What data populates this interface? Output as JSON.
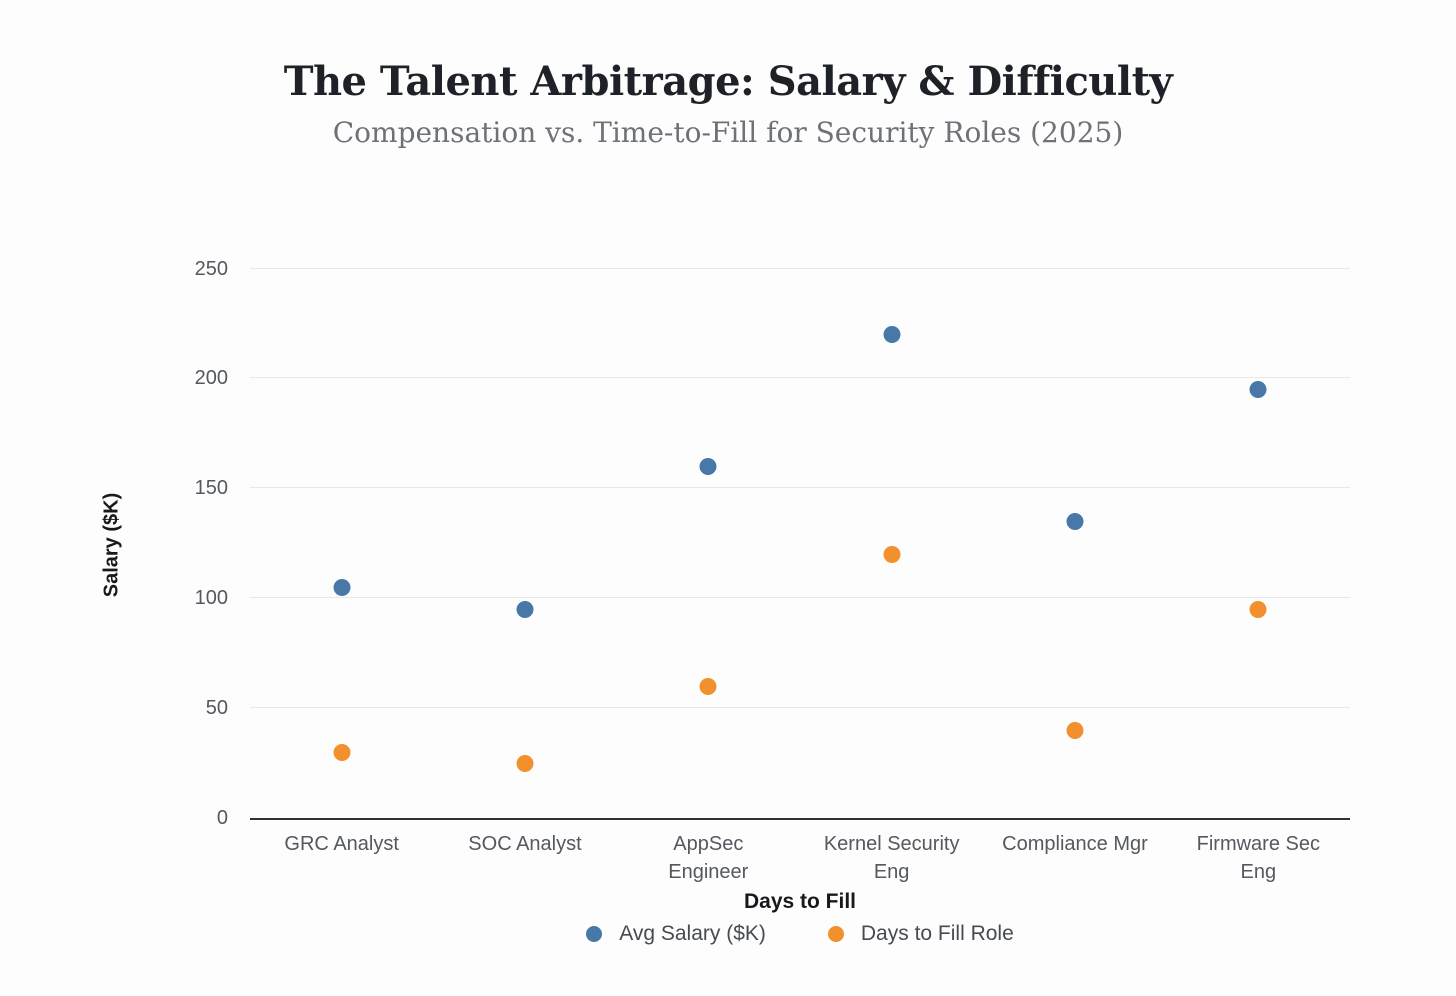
{
  "chart_data": {
    "type": "scatter",
    "title": "The Talent Arbitrage: Salary & Difficulty",
    "subtitle": "Compensation vs. Time-to-Fill for Security Roles (2025)",
    "xlabel": "Days to Fill",
    "ylabel": "Salary ($K)",
    "ylim": [
      0,
      250
    ],
    "yticks": [
      0,
      50,
      100,
      150,
      200,
      250
    ],
    "grid": true,
    "legend_position": "bottom",
    "categories": [
      "GRC Analyst",
      "SOC Analyst",
      "AppSec Engineer",
      "Kernel Security Eng",
      "Compliance Mgr",
      "Firmware Sec Eng"
    ],
    "category_label_lines": [
      [
        "GRC Analyst"
      ],
      [
        "SOC Analyst"
      ],
      [
        "AppSec",
        "Engineer"
      ],
      [
        "Kernel Security",
        "Eng"
      ],
      [
        "Compliance Mgr"
      ],
      [
        "Firmware Sec",
        "Eng"
      ]
    ],
    "series": [
      {
        "name": "Avg Salary ($K)",
        "color": "#4878a8",
        "values": [
          105,
          95,
          160,
          220,
          135,
          195
        ]
      },
      {
        "name": "Days to Fill Role",
        "color": "#f2902d",
        "values": [
          30,
          25,
          60,
          120,
          40,
          95
        ]
      }
    ],
    "colors": {
      "gridline": "#e7e7e7",
      "axis_line": "#2f3136",
      "tick_label": "#54585f",
      "title": "#1e2228",
      "subtitle": "#6e7178"
    }
  }
}
